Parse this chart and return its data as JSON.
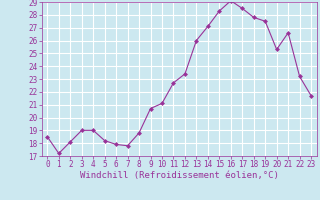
{
  "x": [
    0,
    1,
    2,
    3,
    4,
    5,
    6,
    7,
    8,
    9,
    10,
    11,
    12,
    13,
    14,
    15,
    16,
    17,
    18,
    19,
    20,
    21,
    22,
    23
  ],
  "y": [
    18.5,
    17.2,
    18.1,
    19.0,
    19.0,
    18.2,
    17.9,
    17.8,
    18.8,
    20.7,
    21.1,
    22.7,
    23.4,
    26.0,
    27.1,
    28.3,
    29.1,
    28.5,
    27.8,
    27.5,
    25.3,
    26.6,
    23.2,
    21.7
  ],
  "line_color": "#993399",
  "marker": "D",
  "marker_size": 2.0,
  "bg_color": "#cce8f0",
  "grid_color": "#ffffff",
  "xlabel": "Windchill (Refroidissement éolien,°C)",
  "xlabel_color": "#993399",
  "tick_color": "#993399",
  "label_color": "#993399",
  "ylim": [
    17,
    29
  ],
  "xlim_min": -0.5,
  "xlim_max": 23.5,
  "yticks": [
    17,
    18,
    19,
    20,
    21,
    22,
    23,
    24,
    25,
    26,
    27,
    28,
    29
  ],
  "xticks": [
    0,
    1,
    2,
    3,
    4,
    5,
    6,
    7,
    8,
    9,
    10,
    11,
    12,
    13,
    14,
    15,
    16,
    17,
    18,
    19,
    20,
    21,
    22,
    23
  ],
  "tick_fontsize": 5.5,
  "xlabel_fontsize": 6.5
}
